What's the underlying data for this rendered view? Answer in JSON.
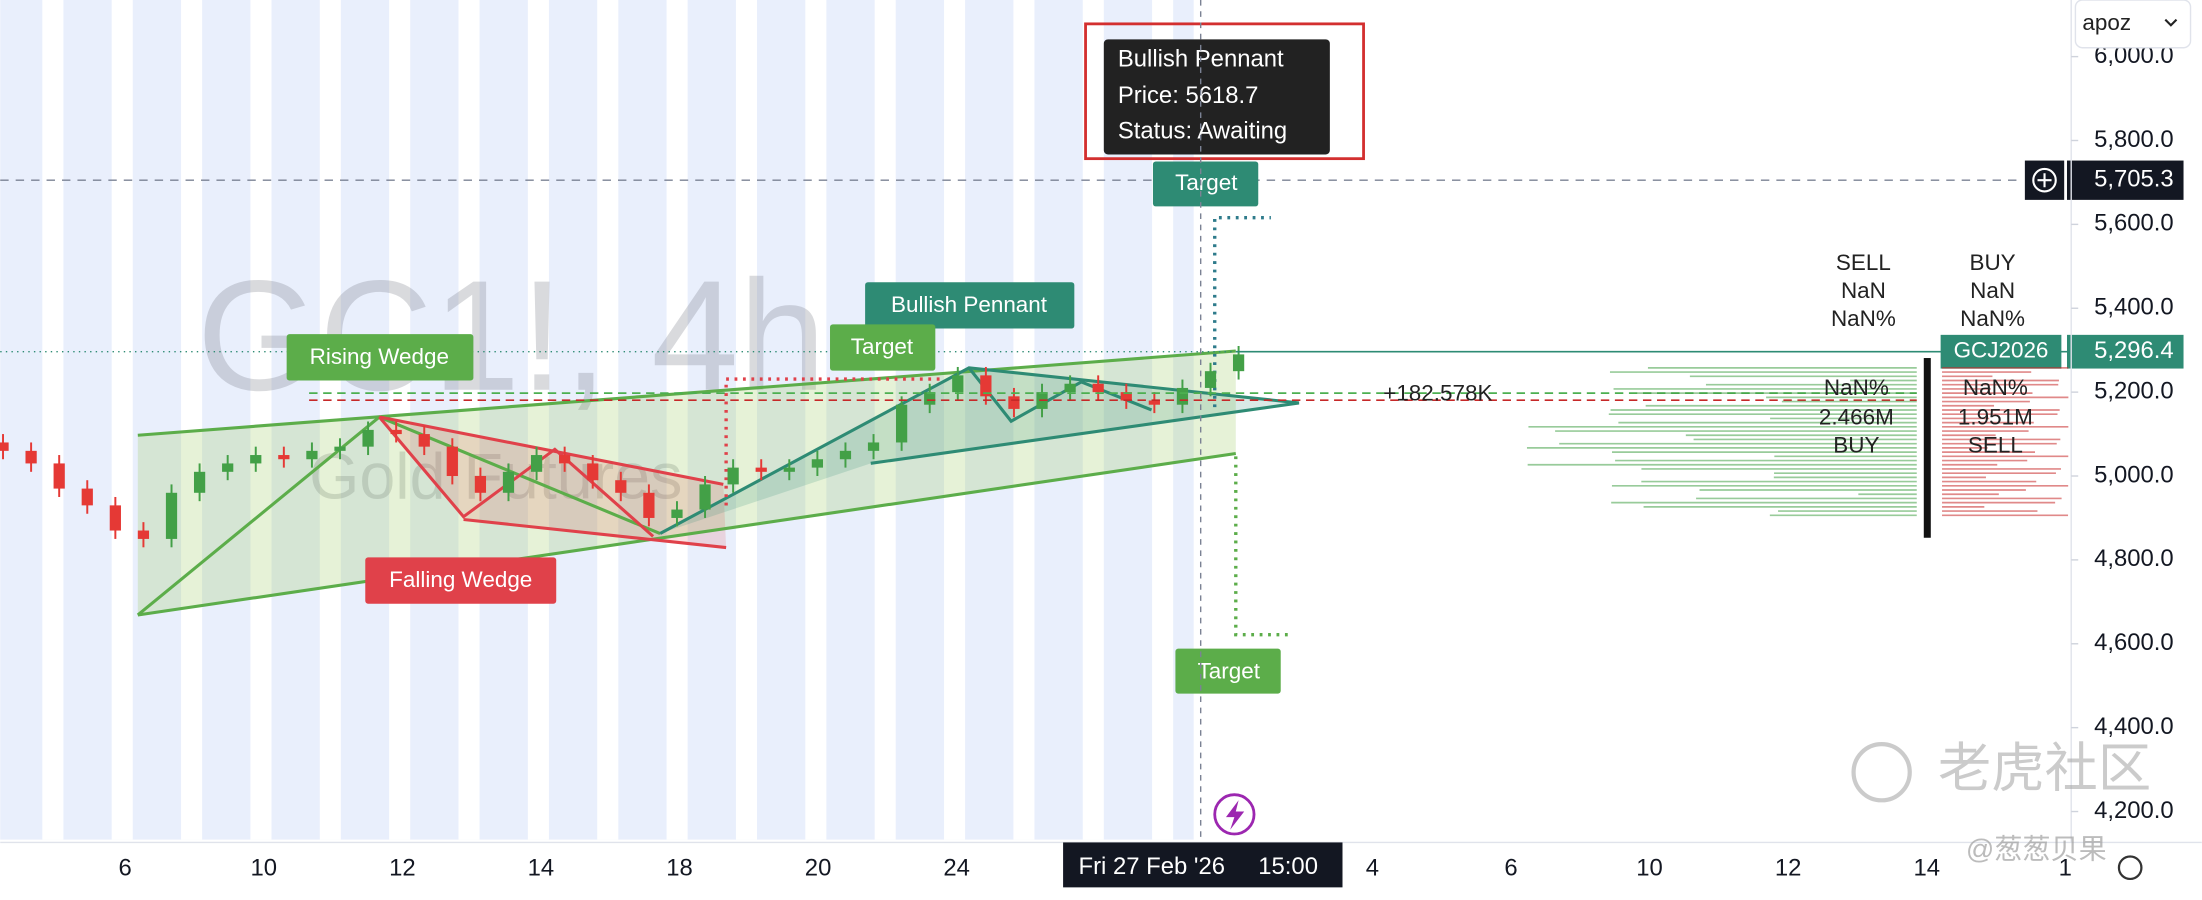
{
  "chart_data": {
    "type": "candlestick",
    "symbol_watermark": "GC1!, 4h",
    "name_watermark": "Gold Futures",
    "up_color": "#43a047",
    "down_color": "#e53935",
    "ylim": [
      4133,
      6135
    ],
    "yticks": [
      {
        "value": 6000,
        "label": "6,000.0"
      },
      {
        "value": 5800,
        "label": "5,800.0"
      },
      {
        "value": 5600,
        "label": "5,600.0"
      },
      {
        "value": 5400,
        "label": "5,400.0"
      },
      {
        "value": 5200,
        "label": "5,200.0"
      },
      {
        "value": 5000,
        "label": "5,000.0"
      },
      {
        "value": 4800,
        "label": "4,800.0"
      },
      {
        "value": 4600,
        "label": "4,600.0"
      },
      {
        "value": 4400,
        "label": "4,400.0"
      },
      {
        "value": 4200,
        "label": "4,200.0"
      }
    ],
    "categories": [
      "6",
      "10",
      "12",
      "14",
      "18",
      "20",
      "24",
      null,
      null,
      "4",
      "6",
      "10",
      "12",
      "14",
      "1"
    ],
    "open": [
      5080,
      5060,
      5030,
      4970,
      4930,
      4870,
      4850,
      4960,
      5010,
      5030,
      5050,
      5040,
      5060,
      5070,
      5110,
      5100,
      5070,
      5000,
      4960,
      5010,
      5050,
      5030,
      4990,
      4960,
      4900,
      4920,
      4980,
      5020,
      5010,
      5020,
      5040,
      5060,
      5080,
      5170,
      5200,
      5240,
      5190,
      5160,
      5200,
      5220,
      5200,
      5180,
      5170,
      5210,
      5250
    ],
    "high": [
      5100,
      5080,
      5050,
      4990,
      4950,
      4890,
      4980,
      5030,
      5050,
      5070,
      5070,
      5080,
      5090,
      5130,
      5130,
      5120,
      5090,
      5020,
      5030,
      5070,
      5070,
      5050,
      5010,
      4980,
      4940,
      5000,
      5040,
      5040,
      5040,
      5060,
      5080,
      5100,
      5190,
      5220,
      5260,
      5260,
      5210,
      5220,
      5240,
      5240,
      5220,
      5200,
      5230,
      5270,
      5310
    ],
    "low": [
      5040,
      5010,
      4950,
      4910,
      4850,
      4830,
      4830,
      4940,
      4990,
      5010,
      5020,
      5020,
      5040,
      5050,
      5080,
      5050,
      4980,
      4940,
      4940,
      4990,
      5010,
      4970,
      4940,
      4880,
      4880,
      4900,
      4960,
      4990,
      4990,
      5000,
      5020,
      5040,
      5060,
      5150,
      5180,
      5170,
      5140,
      5140,
      5180,
      5180,
      5160,
      5150,
      5150,
      5190,
      5230
    ],
    "close": [
      5060,
      5030,
      4970,
      4930,
      4870,
      4850,
      4960,
      5010,
      5030,
      5050,
      5040,
      5060,
      5070,
      5110,
      5100,
      5070,
      5000,
      4960,
      5010,
      5050,
      5030,
      4990,
      4960,
      4900,
      4920,
      4980,
      5020,
      5010,
      5020,
      5040,
      5060,
      5080,
      5170,
      5200,
      5240,
      5190,
      5160,
      5200,
      5220,
      5200,
      5180,
      5170,
      5210,
      5250,
      5290
    ],
    "price_lines": [
      {
        "value": 5705.3,
        "label": "5,705.3"
      },
      {
        "value": 5296.4,
        "label": "5,296.4",
        "symbol": "GCJ2026"
      }
    ],
    "patterns": {
      "rising_wedge": "Rising Wedge",
      "falling_wedge": "Falling Wedge",
      "bullish_pennant": "Bullish Pennant",
      "targets": [
        "Target",
        "Target",
        "Target"
      ]
    },
    "tooltip": [
      "Bullish Pennant",
      "Price: 5618.7",
      "Status: Awaiting"
    ],
    "volume_delta": "+182.578K",
    "profile_top": {
      "sell": [
        "SELL",
        "NaN",
        "NaN%"
      ],
      "buy": [
        "BUY",
        "NaN",
        "NaN%"
      ]
    },
    "profile_mid": {
      "left": [
        "NaN%",
        "2.466M",
        "BUY"
      ],
      "right": [
        "NaN%",
        "1.951M",
        "SELL"
      ]
    },
    "cursor_date": "Fri 27 Feb '26",
    "cursor_time": "15:00",
    "account": "apoz",
    "watermark": "老虎社区",
    "watermark_user": "@葱葱贝果"
  }
}
